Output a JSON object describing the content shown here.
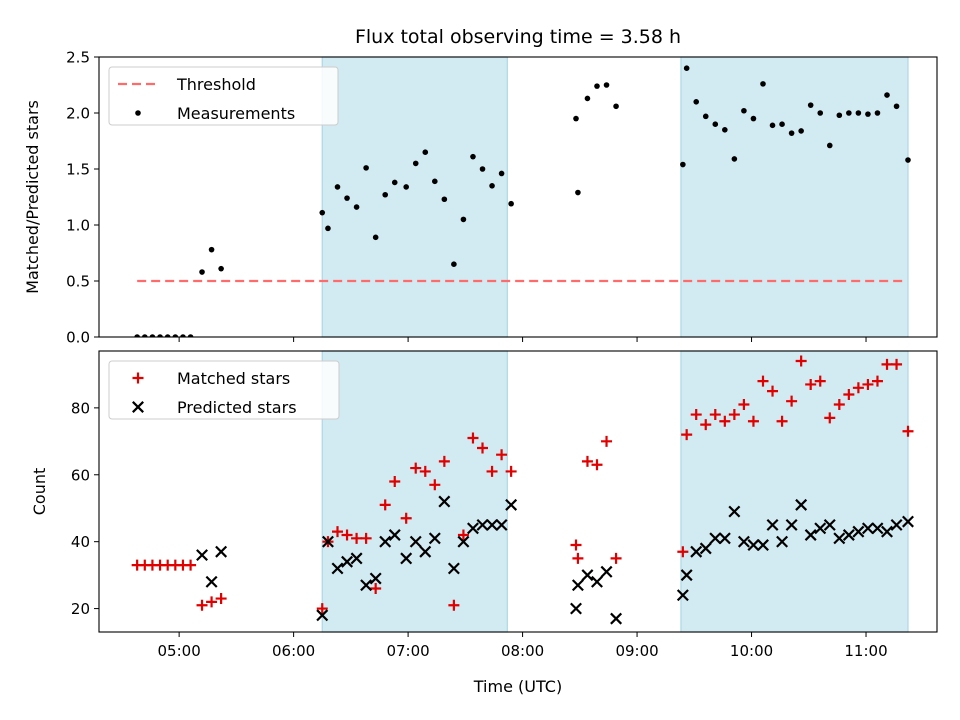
{
  "title": "Flux total observing time = 3.58 h",
  "xlabel": "Time (UTC)",
  "x_ticks": [
    "05:00",
    "06:00",
    "07:00",
    "08:00",
    "09:00",
    "10:00",
    "11:00"
  ],
  "colors": {
    "threshold": "#ff6b6b",
    "measurements": "#000000",
    "matched": "#e00000",
    "predicted": "#000000",
    "shade": "#add8e6"
  },
  "chart_data": [
    {
      "type": "scatter",
      "panel": "top",
      "ylabel": "Matched/Predicted stars",
      "ylim": [
        0,
        2.5
      ],
      "y_ticks": [
        "0.0",
        "0.5",
        "1.0",
        "1.5",
        "2.0",
        "2.5"
      ],
      "xlim_hours": [
        4.3,
        11.62
      ],
      "shaded_intervals": [
        [
          "06:15",
          "07:52"
        ],
        [
          "09:23",
          "11:22"
        ]
      ],
      "legend": {
        "placement": "top-left",
        "entries": [
          "Threshold",
          "Measurements"
        ]
      },
      "threshold": {
        "name": "Threshold",
        "value": 0.5,
        "x_range": [
          "04:38",
          "11:20"
        ]
      },
      "series": [
        {
          "name": "Measurements",
          "marker": "dot",
          "x": [
            "04:38",
            "04:42",
            "04:46",
            "04:50",
            "04:54",
            "04:58",
            "05:02",
            "05:06",
            "05:12",
            "05:17",
            "05:22",
            "06:15",
            "06:18",
            "06:23",
            "06:28",
            "06:33",
            "06:38",
            "06:43",
            "06:48",
            "06:53",
            "06:59",
            "07:04",
            "07:09",
            "07:14",
            "07:19",
            "07:24",
            "07:29",
            "07:34",
            "07:39",
            "07:44",
            "07:49",
            "07:54",
            "08:28",
            "08:29",
            "08:34",
            "08:39",
            "08:44",
            "08:49",
            "09:24",
            "09:26",
            "09:31",
            "09:36",
            "09:41",
            "09:46",
            "09:51",
            "09:56",
            "10:01",
            "10:06",
            "10:11",
            "10:16",
            "10:21",
            "10:26",
            "10:31",
            "10:36",
            "10:41",
            "10:46",
            "10:51",
            "10:56",
            "11:01",
            "11:06",
            "11:11",
            "11:16",
            "11:22"
          ],
          "y": [
            0.0,
            0.0,
            0.0,
            0.0,
            0.0,
            0.0,
            0.0,
            0.0,
            0.58,
            0.78,
            0.61,
            1.11,
            0.97,
            1.34,
            1.24,
            1.16,
            1.51,
            0.89,
            1.27,
            1.38,
            1.34,
            1.55,
            1.65,
            1.39,
            1.23,
            0.65,
            1.05,
            1.61,
            1.5,
            1.35,
            1.46,
            1.19,
            1.95,
            1.29,
            2.13,
            2.24,
            2.25,
            2.06,
            1.54,
            2.4,
            2.1,
            1.97,
            1.9,
            1.85,
            1.59,
            2.02,
            1.95,
            2.26,
            1.89,
            1.9,
            1.82,
            1.84,
            2.07,
            2.0,
            1.71,
            1.98,
            2.0,
            2.0,
            1.99,
            2.0,
            2.16,
            2.06,
            1.58
          ]
        }
      ]
    },
    {
      "type": "scatter",
      "panel": "bottom",
      "ylabel": "Count",
      "ylim": [
        13,
        97
      ],
      "y_ticks": [
        "20",
        "40",
        "60",
        "80"
      ],
      "xlim_hours": [
        4.3,
        11.62
      ],
      "shaded_intervals": [
        [
          "06:15",
          "07:52"
        ],
        [
          "09:23",
          "11:22"
        ]
      ],
      "legend": {
        "placement": "top-left",
        "entries": [
          "Matched stars",
          "Predicted stars"
        ]
      },
      "series": [
        {
          "name": "Matched stars",
          "marker": "plus",
          "x": [
            "04:38",
            "04:42",
            "04:46",
            "04:50",
            "04:54",
            "04:58",
            "05:02",
            "05:06",
            "05:12",
            "05:17",
            "05:22",
            "06:15",
            "06:18",
            "06:23",
            "06:28",
            "06:33",
            "06:38",
            "06:43",
            "06:48",
            "06:53",
            "06:59",
            "07:04",
            "07:09",
            "07:14",
            "07:19",
            "07:24",
            "07:29",
            "07:34",
            "07:39",
            "07:44",
            "07:49",
            "07:54",
            "08:28",
            "08:29",
            "08:34",
            "08:39",
            "08:44",
            "08:49",
            "09:24",
            "09:26",
            "09:31",
            "09:36",
            "09:41",
            "09:46",
            "09:51",
            "09:56",
            "10:01",
            "10:06",
            "10:11",
            "10:16",
            "10:21",
            "10:26",
            "10:31",
            "10:36",
            "10:41",
            "10:46",
            "10:51",
            "10:56",
            "11:01",
            "11:06",
            "11:11",
            "11:16",
            "11:22"
          ],
          "y": [
            33,
            33,
            33,
            33,
            33,
            33,
            33,
            33,
            21,
            22,
            23,
            20,
            40,
            43,
            42,
            41,
            41,
            26,
            51,
            58,
            47,
            62,
            61,
            57,
            64,
            21,
            42,
            71,
            68,
            61,
            66,
            61,
            39,
            35,
            64,
            63,
            70,
            35,
            37,
            72,
            78,
            75,
            78,
            76,
            78,
            81,
            76,
            88,
            85,
            76,
            82,
            94,
            87,
            88,
            77,
            81,
            84,
            86,
            87,
            88,
            93,
            93,
            73
          ]
        },
        {
          "name": "Predicted stars",
          "marker": "x",
          "x": [
            "05:12",
            "05:17",
            "05:22",
            "06:15",
            "06:18",
            "06:23",
            "06:28",
            "06:33",
            "06:38",
            "06:43",
            "06:48",
            "06:53",
            "06:59",
            "07:04",
            "07:09",
            "07:14",
            "07:19",
            "07:24",
            "07:29",
            "07:34",
            "07:39",
            "07:44",
            "07:49",
            "07:54",
            "08:28",
            "08:29",
            "08:34",
            "08:39",
            "08:44",
            "08:49",
            "09:24",
            "09:26",
            "09:31",
            "09:36",
            "09:41",
            "09:46",
            "09:51",
            "09:56",
            "10:01",
            "10:06",
            "10:11",
            "10:16",
            "10:21",
            "10:26",
            "10:31",
            "10:36",
            "10:41",
            "10:46",
            "10:51",
            "10:56",
            "11:01",
            "11:06",
            "11:11",
            "11:16",
            "11:22"
          ],
          "y": [
            36,
            28,
            37,
            18,
            40,
            32,
            34,
            35,
            27,
            29,
            40,
            42,
            35,
            40,
            37,
            41,
            52,
            32,
            40,
            44,
            45,
            45,
            45,
            51,
            20,
            27,
            30,
            28,
            31,
            17,
            24,
            30,
            37,
            38,
            41,
            41,
            49,
            40,
            39,
            39,
            45,
            40,
            45,
            51,
            42,
            44,
            45,
            41,
            42,
            43,
            44,
            44,
            43,
            45,
            46
          ]
        }
      ]
    }
  ]
}
